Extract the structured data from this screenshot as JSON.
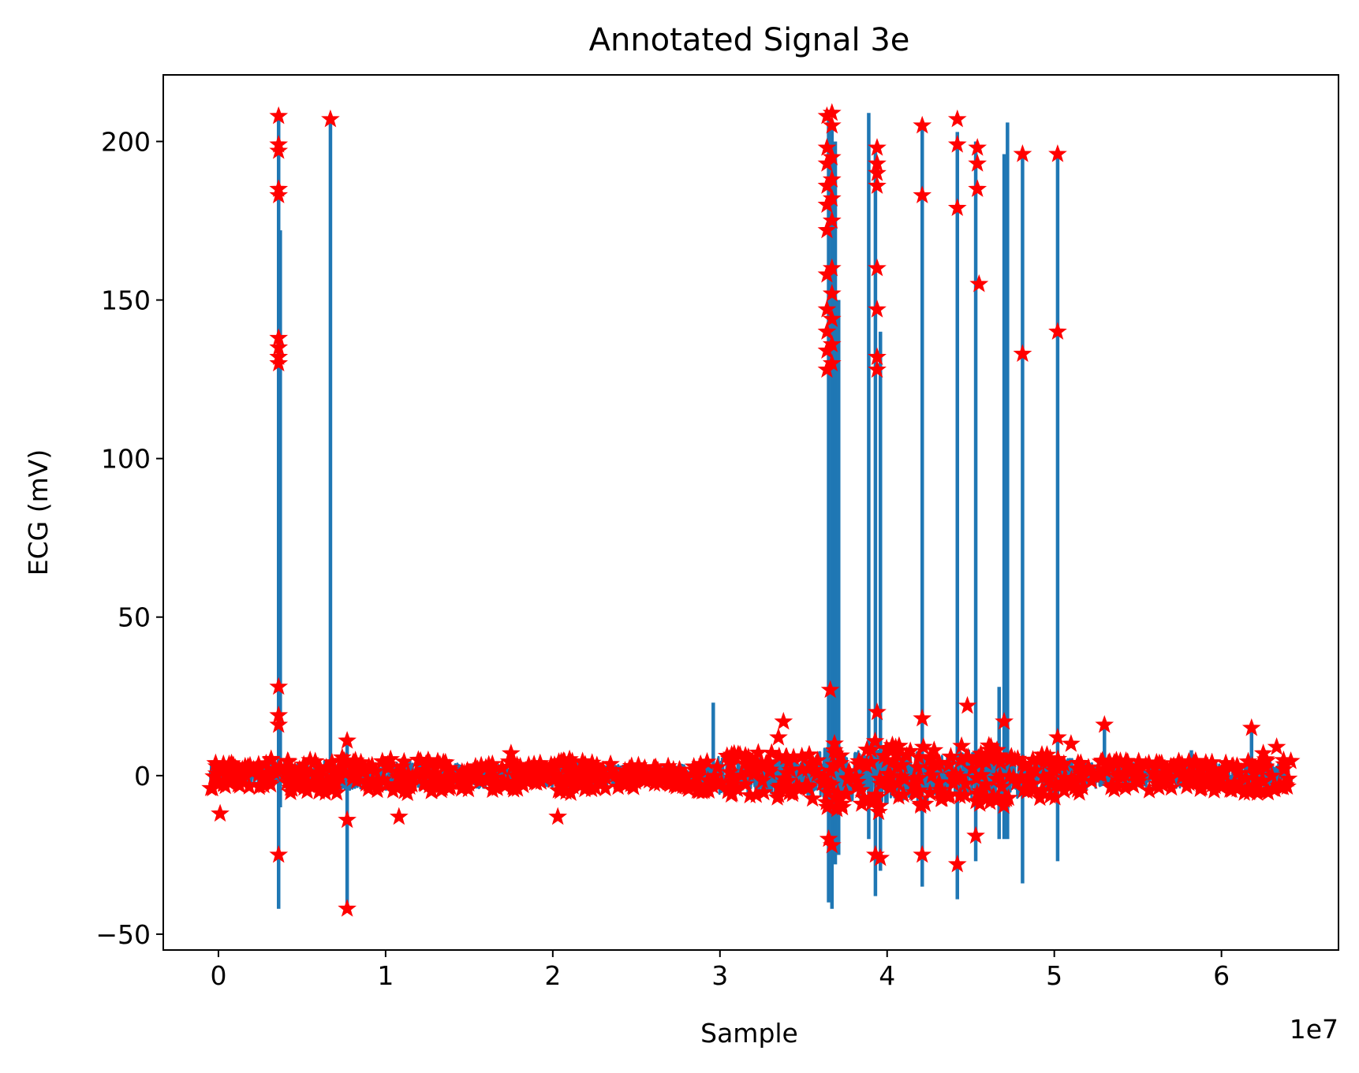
{
  "chart_data": {
    "type": "line",
    "title": "Annotated Signal 3e",
    "xlabel": "Sample",
    "ylabel": "ECG (mV)",
    "x_offset_label": "1e7",
    "xlim": [
      -3300000,
      67000000
    ],
    "ylim": [
      -55,
      221
    ],
    "x_ticks": [
      0,
      10000000,
      20000000,
      30000000,
      40000000,
      50000000,
      60000000
    ],
    "x_tick_labels": [
      "0",
      "1",
      "2",
      "3",
      "4",
      "5",
      "6"
    ],
    "y_ticks": [
      -50,
      0,
      50,
      100,
      150,
      200
    ],
    "y_tick_labels": [
      "−50",
      "0",
      "50",
      "100",
      "150",
      "200"
    ],
    "grid": false,
    "x_range": [
      -500000,
      64200000
    ],
    "series": [
      {
        "role": "signal",
        "color": "#1f77b4",
        "baseline_band": [
          [
            0,
            4
          ],
          [
            1000000,
            3
          ],
          [
            2000000,
            3
          ],
          [
            3500000,
            5
          ],
          [
            5000000,
            4
          ],
          [
            7000000,
            5
          ],
          [
            9000000,
            4
          ],
          [
            11000000,
            5
          ],
          [
            13000000,
            4
          ],
          [
            15000000,
            4
          ],
          [
            17000000,
            4
          ],
          [
            19000000,
            3
          ],
          [
            21000000,
            5
          ],
          [
            23000000,
            4
          ],
          [
            25000000,
            3
          ],
          [
            27000000,
            3
          ],
          [
            28500000,
            4
          ],
          [
            30000000,
            6
          ],
          [
            32000000,
            6
          ],
          [
            34000000,
            6
          ],
          [
            35500000,
            6
          ],
          [
            36500000,
            10
          ],
          [
            37500000,
            8
          ],
          [
            38500000,
            8
          ],
          [
            39500000,
            10
          ],
          [
            40500000,
            8
          ],
          [
            41500000,
            8
          ],
          [
            42500000,
            8
          ],
          [
            43500000,
            6
          ],
          [
            44500000,
            8
          ],
          [
            45500000,
            8
          ],
          [
            46500000,
            8
          ],
          [
            47500000,
            8
          ],
          [
            48500000,
            6
          ],
          [
            49500000,
            6
          ],
          [
            50500000,
            6
          ],
          [
            52000000,
            4
          ],
          [
            54000000,
            4
          ],
          [
            56000000,
            4
          ],
          [
            58000000,
            4
          ],
          [
            60000000,
            4
          ],
          [
            62000000,
            5
          ],
          [
            64200000,
            4
          ]
        ],
        "spikes": [
          [
            3600000,
            208,
            -42
          ],
          [
            3700000,
            172,
            -10
          ],
          [
            6700000,
            207,
            -5
          ],
          [
            7700000,
            10,
            -42
          ],
          [
            29600000,
            23,
            -3
          ],
          [
            36500000,
            209,
            -40
          ],
          [
            36700000,
            206,
            -42
          ],
          [
            36900000,
            200,
            -28
          ],
          [
            37100000,
            150,
            -25
          ],
          [
            38900000,
            209,
            -20
          ],
          [
            39300000,
            198,
            -38
          ],
          [
            39600000,
            140,
            -30
          ],
          [
            42100000,
            205,
            -35
          ],
          [
            44200000,
            203,
            -39
          ],
          [
            45300000,
            200,
            -27
          ],
          [
            46700000,
            28,
            -20
          ],
          [
            47000000,
            196,
            -20
          ],
          [
            47200000,
            206,
            -20
          ],
          [
            48100000,
            196,
            -34
          ],
          [
            50200000,
            195,
            -27
          ],
          [
            53000000,
            15,
            -3
          ],
          [
            58200000,
            8,
            -3
          ],
          [
            61800000,
            14,
            -3
          ]
        ]
      },
      {
        "role": "annotations",
        "color": "#ff0000",
        "marker": "star",
        "points": [
          [
            3600000,
            208
          ],
          [
            3600000,
            199
          ],
          [
            3600000,
            197
          ],
          [
            3600000,
            185
          ],
          [
            3600000,
            183
          ],
          [
            3600000,
            138
          ],
          [
            3600000,
            135
          ],
          [
            3600000,
            132
          ],
          [
            3600000,
            130
          ],
          [
            3600000,
            28
          ],
          [
            3600000,
            19
          ],
          [
            3600000,
            16
          ],
          [
            3600000,
            -25
          ],
          [
            6700000,
            207
          ],
          [
            7700000,
            11
          ],
          [
            7700000,
            -14
          ],
          [
            7700000,
            -42
          ],
          [
            100000,
            -12
          ],
          [
            10800000,
            -13
          ],
          [
            20300000,
            -13
          ],
          [
            17500000,
            7
          ],
          [
            33800000,
            17
          ],
          [
            33500000,
            12
          ],
          [
            36400000,
            208
          ],
          [
            36400000,
            198
          ],
          [
            36400000,
            193
          ],
          [
            36400000,
            186
          ],
          [
            36400000,
            180
          ],
          [
            36400000,
            172
          ],
          [
            36400000,
            158
          ],
          [
            36400000,
            147
          ],
          [
            36400000,
            140
          ],
          [
            36400000,
            134
          ],
          [
            36400000,
            128
          ],
          [
            36700000,
            209
          ],
          [
            36700000,
            205
          ],
          [
            36700000,
            195
          ],
          [
            36700000,
            188
          ],
          [
            36700000,
            182
          ],
          [
            36700000,
            175
          ],
          [
            36700000,
            160
          ],
          [
            36700000,
            152
          ],
          [
            36700000,
            144
          ],
          [
            36700000,
            136
          ],
          [
            36700000,
            130
          ],
          [
            36600000,
            27
          ],
          [
            36500000,
            -20
          ],
          [
            36700000,
            -22
          ],
          [
            39400000,
            198
          ],
          [
            39400000,
            193
          ],
          [
            39400000,
            190
          ],
          [
            39400000,
            186
          ],
          [
            39400000,
            160
          ],
          [
            39400000,
            147
          ],
          [
            39400000,
            132
          ],
          [
            39400000,
            128
          ],
          [
            39400000,
            20
          ],
          [
            39300000,
            -25
          ],
          [
            39600000,
            -26
          ],
          [
            42100000,
            205
          ],
          [
            42100000,
            183
          ],
          [
            42100000,
            18
          ],
          [
            42100000,
            -25
          ],
          [
            44200000,
            207
          ],
          [
            44200000,
            199
          ],
          [
            44200000,
            179
          ],
          [
            44200000,
            -28
          ],
          [
            44800000,
            22
          ],
          [
            45400000,
            198
          ],
          [
            45400000,
            193
          ],
          [
            45400000,
            185
          ],
          [
            45500000,
            155
          ],
          [
            45300000,
            -19
          ],
          [
            47000000,
            17
          ],
          [
            48100000,
            196
          ],
          [
            48100000,
            133
          ],
          [
            50200000,
            196
          ],
          [
            50200000,
            140
          ],
          [
            50200000,
            12
          ],
          [
            51000000,
            10
          ],
          [
            53000000,
            16
          ],
          [
            61800000,
            15
          ],
          [
            63300000,
            9
          ],
          [
            62500000,
            7
          ],
          [
            64000000,
            -1
          ]
        ]
      }
    ]
  }
}
